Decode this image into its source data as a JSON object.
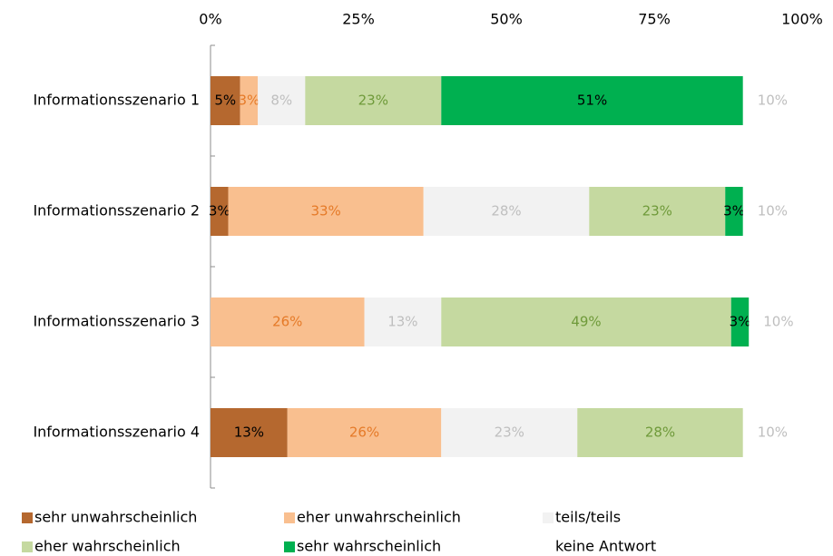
{
  "chart_data": {
    "type": "stacked-bar-horizontal",
    "categories": [
      "Informationsszenario 1",
      "Informationsszenario 2",
      "Informationsszenario 3",
      "Informationsszenario 4"
    ],
    "xlim": [
      0,
      100
    ],
    "xticks": [
      {
        "value": 0,
        "label": "0%"
      },
      {
        "value": 25,
        "label": "25%"
      },
      {
        "value": 50,
        "label": "50%"
      },
      {
        "value": 75,
        "label": "75%"
      },
      {
        "value": 100,
        "label": "100%"
      }
    ],
    "series": [
      {
        "name": "sehr unwahrscheinlich",
        "color": "#b5682f",
        "label_color": "#000000",
        "values": [
          5,
          3,
          null,
          13
        ],
        "value_labels": [
          "5%",
          "3%",
          null,
          "13%"
        ]
      },
      {
        "name": "eher unwahrscheinlich",
        "color": "#f9bf8f",
        "label_color": "#e57a28",
        "values": [
          3,
          33,
          26,
          26
        ],
        "value_labels": [
          "3%",
          "33%",
          "26%",
          "26%"
        ]
      },
      {
        "name": "teils/teils",
        "color": "#f2f2f2",
        "label_color": "#bfbfbf",
        "values": [
          8,
          28,
          13,
          23
        ],
        "value_labels": [
          "8%",
          "28%",
          "13%",
          "23%"
        ]
      },
      {
        "name": "eher wahrscheinlich",
        "color": "#c5d9a0",
        "label_color": "#6f9a3a",
        "values": [
          23,
          23,
          49,
          28
        ],
        "value_labels": [
          "23%",
          "23%",
          "49%",
          "28%"
        ]
      },
      {
        "name": "sehr wahrscheinlich",
        "color": "#00b050",
        "label_color": "#000000",
        "values": [
          51,
          3,
          3,
          null
        ],
        "value_labels": [
          "51%",
          "3%",
          "3%",
          null
        ]
      },
      {
        "name": "keine Antwort",
        "color": "#ffffff",
        "label_color": "#bfbfbf",
        "values": [
          10,
          10,
          10,
          10
        ],
        "value_labels": [
          "10%",
          "10%",
          "10%",
          "10%"
        ]
      }
    ]
  }
}
